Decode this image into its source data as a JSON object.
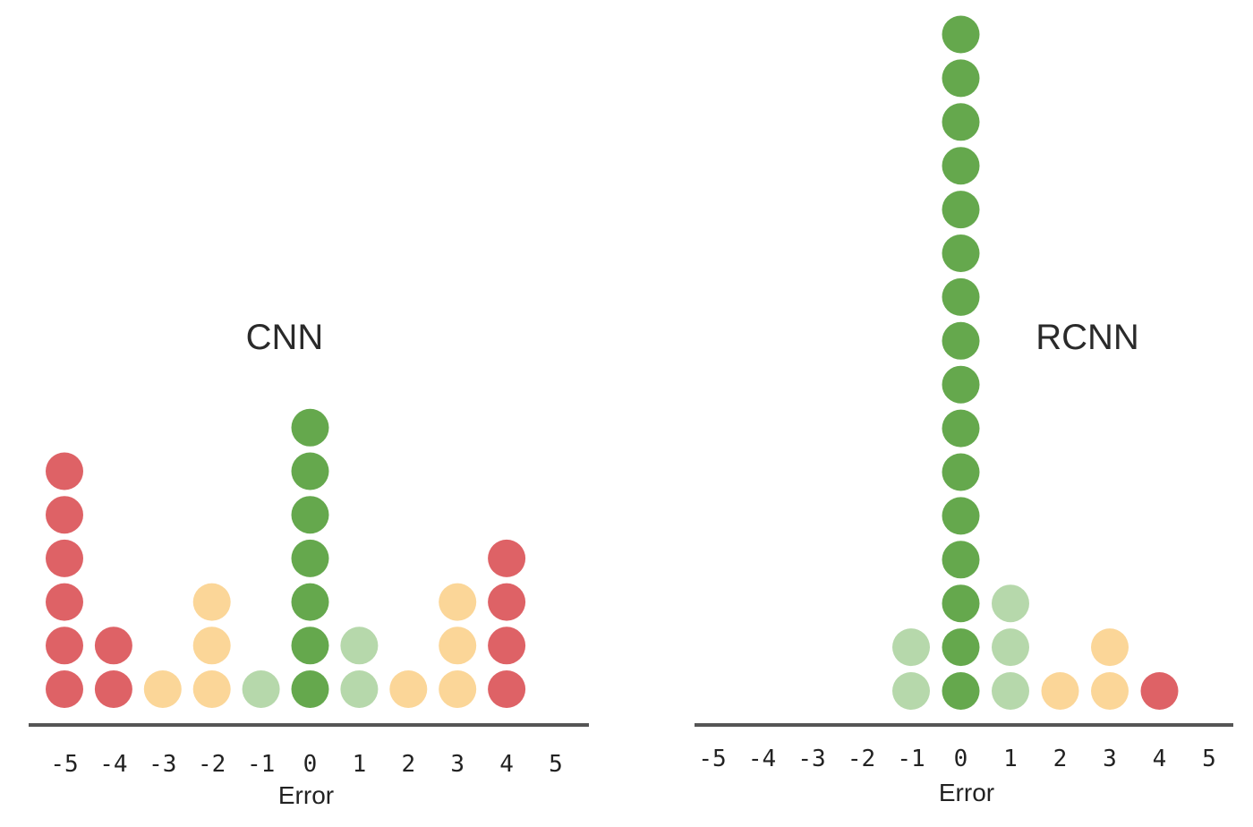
{
  "palette": {
    "red": "#de6266",
    "orange": "#fbd698",
    "light_green": "#b6d8ab",
    "green": "#65a84d",
    "axis": "#555555"
  },
  "chart_data": [
    {
      "type": "dot-histogram",
      "title": "CNN",
      "xlabel": "Error",
      "x": [
        -5,
        -4,
        -3,
        -2,
        -1,
        0,
        1,
        2,
        3,
        4,
        5
      ],
      "x_tick_labels": [
        "-5",
        "-4",
        "-3",
        "-2",
        "-1",
        "0",
        "1",
        "2",
        "3",
        "4",
        "5"
      ],
      "counts": [
        6,
        2,
        1,
        3,
        1,
        7,
        2,
        1,
        3,
        4,
        0
      ],
      "dot_colors": [
        "red",
        "red",
        "orange",
        "orange",
        "light_green",
        "green",
        "light_green",
        "orange",
        "orange",
        "red",
        "red"
      ],
      "grid": false
    },
    {
      "type": "dot-histogram",
      "title": "RCNN",
      "xlabel": "Error",
      "x": [
        -5,
        -4,
        -3,
        -2,
        -1,
        0,
        1,
        2,
        3,
        4,
        5
      ],
      "x_tick_labels": [
        "-5",
        "-4",
        "-3",
        "-2",
        "-1",
        "0",
        "1",
        "2",
        "3",
        "4",
        "5"
      ],
      "counts": [
        0,
        0,
        0,
        0,
        2,
        16,
        3,
        1,
        2,
        1,
        0
      ],
      "dot_colors": [
        "red",
        "red",
        "orange",
        "orange",
        "light_green",
        "green",
        "light_green",
        "orange",
        "orange",
        "red",
        "red"
      ],
      "grid": false
    }
  ]
}
